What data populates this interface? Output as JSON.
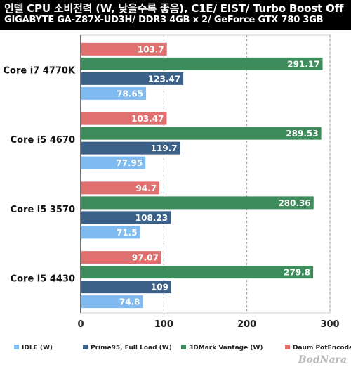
{
  "header": {
    "title": "인텔 CPU 소비전력 (W, 낮을수록 좋음), C1E/ EIST/ Turbo Boost Off",
    "subtitle": "GIGABYTE GA-Z87X-UD3H/ DDR3 4GB x 2/ GeForce GTX 780 3GB"
  },
  "watermark": "BodNara",
  "chart_data": {
    "type": "bar",
    "orientation": "horizontal",
    "categories": [
      "Core i7 4770K",
      "Core i5 4670",
      "Core i5 3570",
      "Core i5 4430"
    ],
    "series": [
      {
        "name": "IDLE (W)",
        "color": "#7fbaf0",
        "values": [
          78.65,
          77.95,
          71.5,
          74.8
        ]
      },
      {
        "name": "Prime95, Full Load (W)",
        "color": "#3c6189",
        "values": [
          123.47,
          119.7,
          108.23,
          109
        ]
      },
      {
        "name": "3DMark Vantage (W)",
        "color": "#3e8c5b",
        "values": [
          291.17,
          289.53,
          280.36,
          279.8
        ]
      },
      {
        "name": "Daum PotEncoder (W)",
        "color": "#e07070",
        "values": [
          103.7,
          103.47,
          94.7,
          97.07
        ]
      }
    ],
    "value_labels": {
      "IDLE (W)": [
        "78.65",
        "77.95",
        "71.5",
        "74.8"
      ],
      "Prime95, Full Load (W)": [
        "123.47",
        "119.7",
        "108.23",
        "109"
      ],
      "3DMark Vantage (W)": [
        "291.17",
        "289.53",
        "280.36",
        "279.8"
      ],
      "Daum PotEncoder (W)": [
        "103.7",
        "103.47",
        "94.7",
        "97.07"
      ]
    },
    "xlim": [
      0,
      300
    ],
    "ticks": [
      0,
      100,
      200,
      300
    ],
    "tick_labels": [
      "0",
      "100",
      "200",
      "300"
    ],
    "grid": true,
    "legend_position": "bottom"
  }
}
